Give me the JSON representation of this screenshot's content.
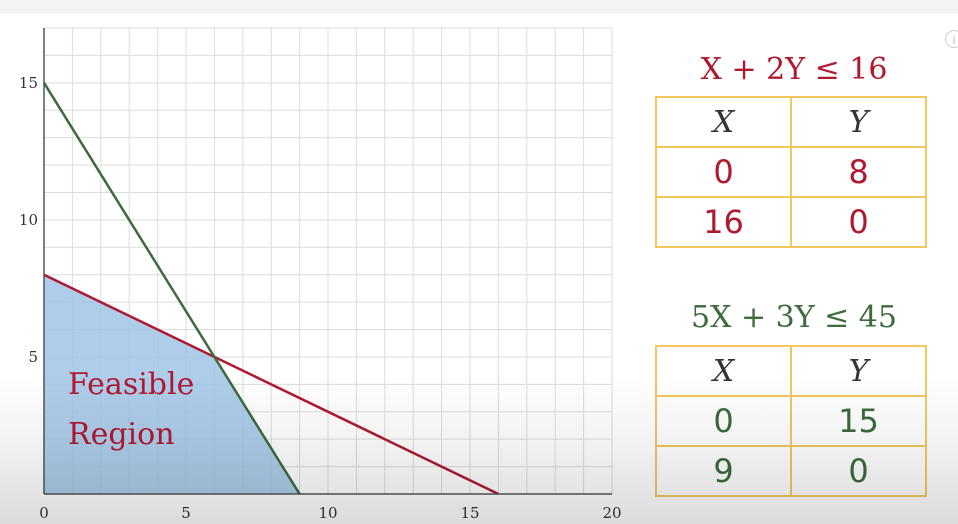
{
  "colors": {
    "constraint1": "#b01830",
    "constraint2": "#3c6b3c",
    "region_fill": "#9fc4e6",
    "grid": "#dcdcdc",
    "table_border": "#f2c75c"
  },
  "chart_data": {
    "type": "line",
    "xlim": [
      0,
      20
    ],
    "ylim": [
      0,
      17
    ],
    "grid": true,
    "x_ticks": [
      0,
      5,
      10,
      15,
      20
    ],
    "y_ticks": [
      5,
      10,
      15
    ],
    "series": [
      {
        "name": "X + 2Y ≤ 16",
        "points": [
          [
            0,
            8
          ],
          [
            16,
            0
          ]
        ]
      },
      {
        "name": "5X + 3Y ≤ 45",
        "points": [
          [
            0,
            15
          ],
          [
            9,
            0
          ]
        ]
      }
    ],
    "feasible_region": [
      [
        0,
        0
      ],
      [
        0,
        8
      ],
      [
        6,
        5
      ],
      [
        9,
        0
      ]
    ],
    "annotation": [
      "Feasible",
      "Region"
    ]
  },
  "tables": [
    {
      "title": "X + 2Y ≤ 16",
      "headers": [
        "X",
        "Y"
      ],
      "rows": [
        [
          "0",
          "8"
        ],
        [
          "16",
          "0"
        ]
      ]
    },
    {
      "title": "5X + 3Y ≤ 45",
      "headers": [
        "X",
        "Y"
      ],
      "rows": [
        [
          "0",
          "15"
        ],
        [
          "9",
          "0"
        ]
      ]
    }
  ],
  "icons": {
    "info": "info-icon"
  }
}
